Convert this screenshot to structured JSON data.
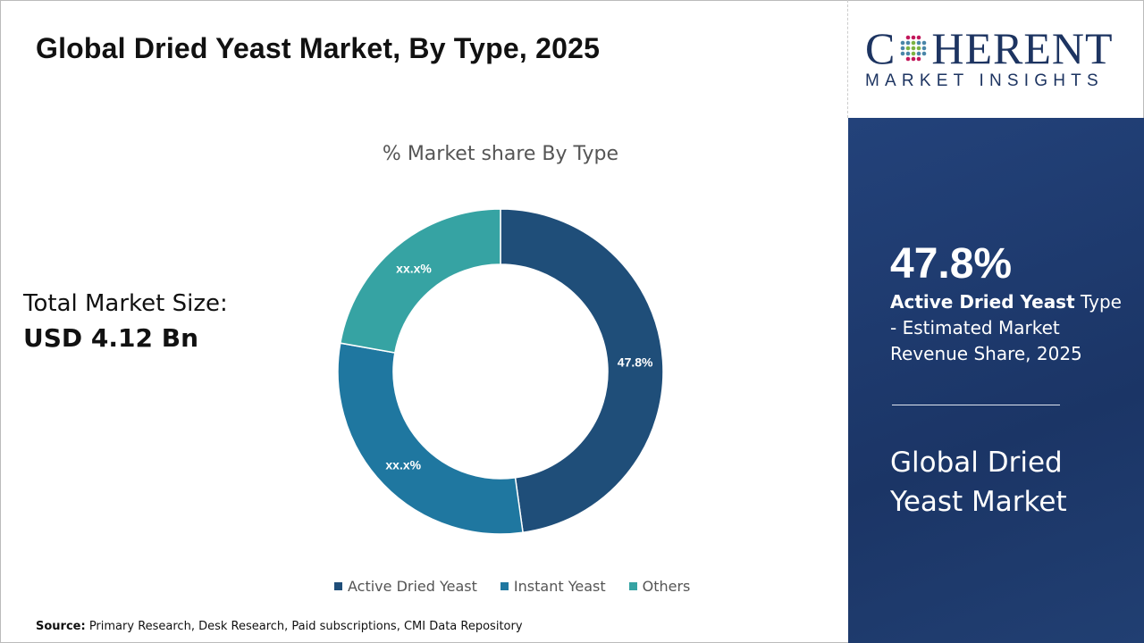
{
  "header": {
    "title": "Global Dried Yeast Market, By Type, 2025"
  },
  "logo": {
    "line1_a": "C",
    "line1_b": "HERENT",
    "line2": "MARKET INSIGHTS"
  },
  "total": {
    "label": "Total Market Size:",
    "value": "USD 4.12 Bn"
  },
  "panel": {
    "stat": "47.8%",
    "desc_bold": "Active Dried Yeast",
    "desc_rest": " Type - Estimated Market Revenue Share, 2025",
    "market": "Global Dried Yeast Market"
  },
  "source": {
    "label": "Source:",
    "text": " Primary Research, Desk Research, Paid subscriptions, CMI Data Repository"
  },
  "colors": {
    "panel": "#1f3b6d",
    "brand": "#1d3461"
  },
  "chart_data": {
    "type": "pie",
    "variant": "donut",
    "title": "% Market share By Type",
    "categories": [
      "Active Dried Yeast",
      "Instant Yeast",
      "Others"
    ],
    "values": [
      47.8,
      30,
      22.2
    ],
    "labels": [
      "47.8%",
      "xx.x%",
      "xx.x%"
    ],
    "colors": [
      "#1f4e79",
      "#1f77a0",
      "#36a3a3"
    ],
    "legend": "bottom"
  }
}
